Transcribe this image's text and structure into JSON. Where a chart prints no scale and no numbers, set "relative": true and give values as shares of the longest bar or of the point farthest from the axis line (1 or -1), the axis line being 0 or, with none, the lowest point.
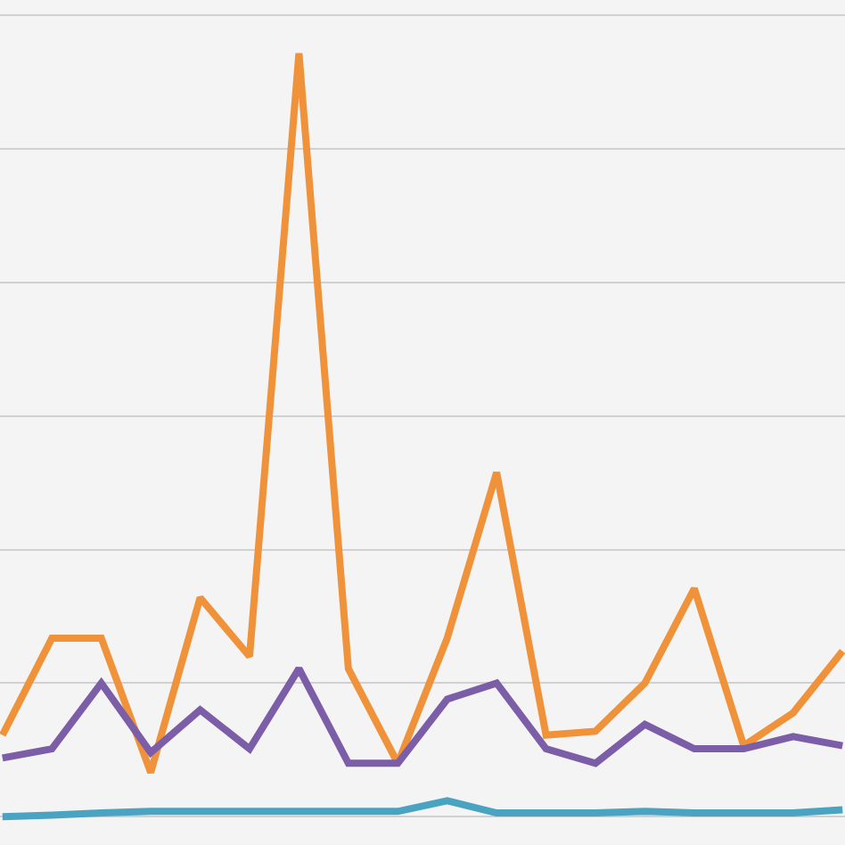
{
  "chart_data": {
    "type": "line",
    "relative": true,
    "grid": true,
    "marker": "none",
    "line_style": "solid",
    "categories": [
      null,
      null,
      null,
      null,
      null,
      null,
      null,
      null,
      null,
      null,
      null,
      null,
      null,
      null,
      null,
      null,
      null,
      null
    ],
    "series": [
      {
        "color": "#f0923a",
        "values": [
          0.107,
          0.234,
          0.234,
          0.058,
          0.287,
          0.21,
          1,
          0.194,
          0.07,
          0.234,
          0.451,
          0.107,
          0.112,
          0.175,
          0.299,
          0.093,
          0.136,
          0.217
        ]
      },
      {
        "color": "#7b5ea7",
        "values": [
          0.077,
          0.089,
          0.175,
          0.084,
          0.14,
          0.089,
          0.194,
          0.07,
          0.07,
          0.154,
          0.175,
          0.089,
          0.07,
          0.121,
          0.089,
          0.089,
          0.105,
          0.093
        ]
      },
      {
        "color": "#4aa3c0",
        "values": [
          0,
          0.002,
          0.005,
          0.007,
          0.007,
          0.007,
          0.007,
          0.007,
          0.007,
          0.021,
          0.005,
          0.005,
          0.005,
          0.007,
          0.005,
          0.005,
          0.005,
          0.009
        ]
      }
    ]
  }
}
